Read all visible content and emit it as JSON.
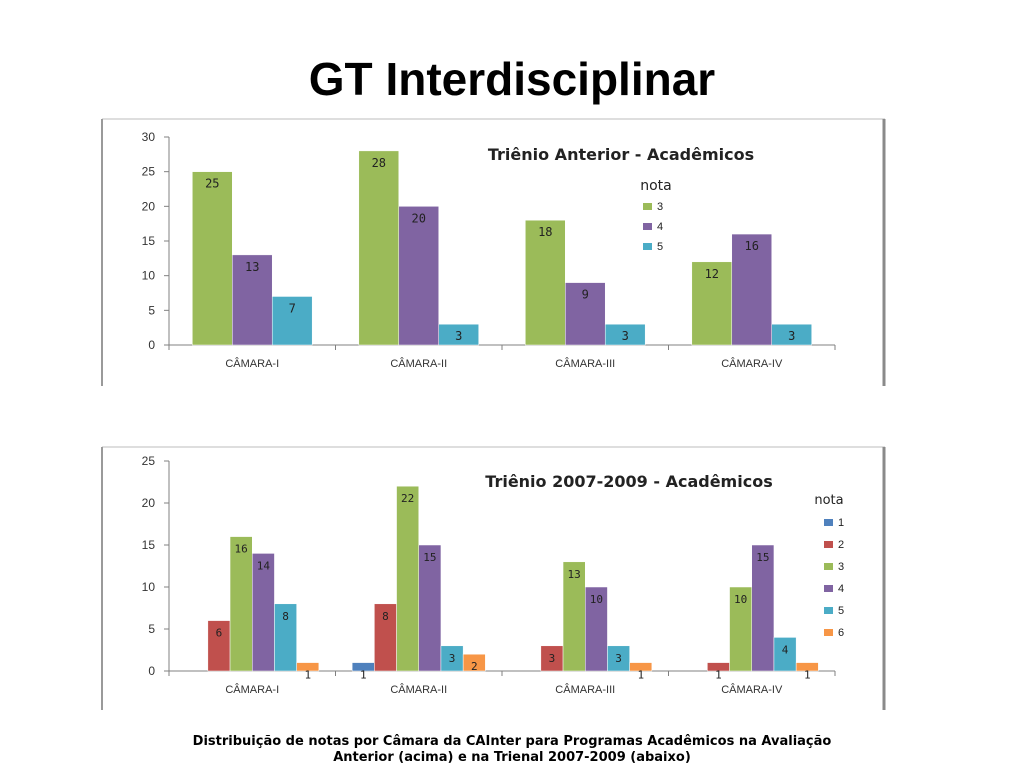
{
  "page": {
    "title": "GT Interdisciplinar"
  },
  "caption": {
    "line1": "Distribuição de notas por Câmara da CAInter para Programas Acadêmicos na Avaliação",
    "line2": "Anterior (acima) e na Trienal 2007-2009 (abaixo)"
  },
  "chart_data": [
    {
      "type": "bar",
      "title": "Triênio Anterior - Acadêmicos",
      "legend_title": "nota",
      "legend_position": "right",
      "categories": [
        "CÂMARA-I",
        "CÂMARA-II",
        "CÂMARA-III",
        "CÂMARA-IV"
      ],
      "ylim": [
        0,
        30
      ],
      "yticks": [
        "0",
        "5",
        "10",
        "15",
        "20",
        "25",
        "30"
      ],
      "series": [
        {
          "name": "3",
          "color": "#9BBB59",
          "values": [
            25,
            28,
            18,
            12
          ]
        },
        {
          "name": "4",
          "color": "#8064A2",
          "values": [
            13,
            20,
            9,
            16
          ]
        },
        {
          "name": "5",
          "color": "#4BACC6",
          "values": [
            7,
            3,
            3,
            3
          ]
        }
      ]
    },
    {
      "type": "bar",
      "title": "Triênio 2007-2009 - Acadêmicos",
      "legend_title": "nota",
      "legend_position": "right",
      "categories": [
        "CÂMARA-I",
        "CÂMARA-II",
        "CÂMARA-III",
        "CÂMARA-IV"
      ],
      "ylim": [
        0,
        25
      ],
      "yticks": [
        "0",
        "5",
        "10",
        "15",
        "20",
        "25"
      ],
      "series": [
        {
          "name": "1",
          "color": "#4F81BD",
          "values": [
            null,
            1,
            null,
            null
          ]
        },
        {
          "name": "2",
          "color": "#C0504D",
          "values": [
            6,
            8,
            3,
            1
          ]
        },
        {
          "name": "3",
          "color": "#9BBB59",
          "values": [
            16,
            22,
            13,
            10
          ]
        },
        {
          "name": "4",
          "color": "#8064A2",
          "values": [
            14,
            15,
            10,
            15
          ]
        },
        {
          "name": "5",
          "color": "#4BACC6",
          "values": [
            8,
            3,
            3,
            4
          ]
        },
        {
          "name": "6",
          "color": "#F79646",
          "values": [
            1,
            2,
            1,
            1
          ]
        }
      ]
    }
  ]
}
